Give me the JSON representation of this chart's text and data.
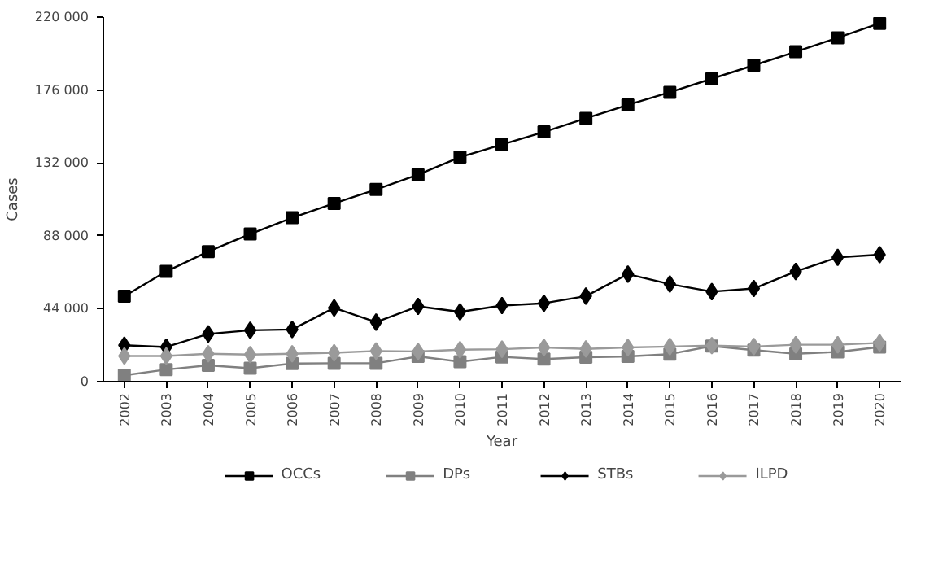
{
  "chart_data": {
    "type": "line",
    "xlabel": "Year",
    "ylabel": "Cases",
    "categories": [
      "2002",
      "2003",
      "2004",
      "2005",
      "2006",
      "2007",
      "2008",
      "2009",
      "2010",
      "2011",
      "2012",
      "2013",
      "2014",
      "2015",
      "2016",
      "2017",
      "2018",
      "2019",
      "2020"
    ],
    "series": [
      {
        "name": "OCCs",
        "color": "#000000",
        "marker": "square",
        "values": [
          51600,
          66500,
          78500,
          89100,
          98900,
          107600,
          116000,
          124900,
          135500,
          143100,
          150700,
          158900,
          167000,
          174600,
          182800,
          190900,
          199100,
          207500,
          216200
        ]
      },
      {
        "name": "DPs",
        "color": "#808080",
        "marker": "square",
        "values": [
          3800,
          7300,
          9800,
          8100,
          10900,
          11100,
          11100,
          15200,
          12000,
          14900,
          13600,
          14700,
          15200,
          16600,
          21500,
          19000,
          16800,
          17900,
          20900
        ]
      },
      {
        "name": "STBs",
        "color": "#000000",
        "marker": "diamond",
        "values": [
          22000,
          20900,
          28800,
          31000,
          31500,
          44500,
          35900,
          45400,
          42100,
          45900,
          47300,
          51600,
          64900,
          58900,
          54300,
          56200,
          66500,
          75000,
          76600
        ]
      },
      {
        "name": "ILPD",
        "color": "#9a9a9a",
        "marker": "diamond",
        "values": [
          15500,
          15500,
          16800,
          16300,
          16800,
          17400,
          18500,
          18200,
          19300,
          19600,
          20600,
          19800,
          20600,
          21200,
          21700,
          21200,
          22300,
          22300,
          23400
        ]
      }
    ],
    "ylim": [
      0,
      220000
    ],
    "yticks": [
      0,
      {
        "value": 44000,
        "label": "44 000"
      },
      {
        "value": 88000,
        "label": "88 000"
      },
      {
        "value": 132000,
        "label": "132 000"
      },
      {
        "value": 176000,
        "label": "176 000"
      },
      {
        "value": 220000,
        "label": "220 000"
      }
    ],
    "grid": false,
    "legend": "bottom",
    "line_style": "solid"
  }
}
